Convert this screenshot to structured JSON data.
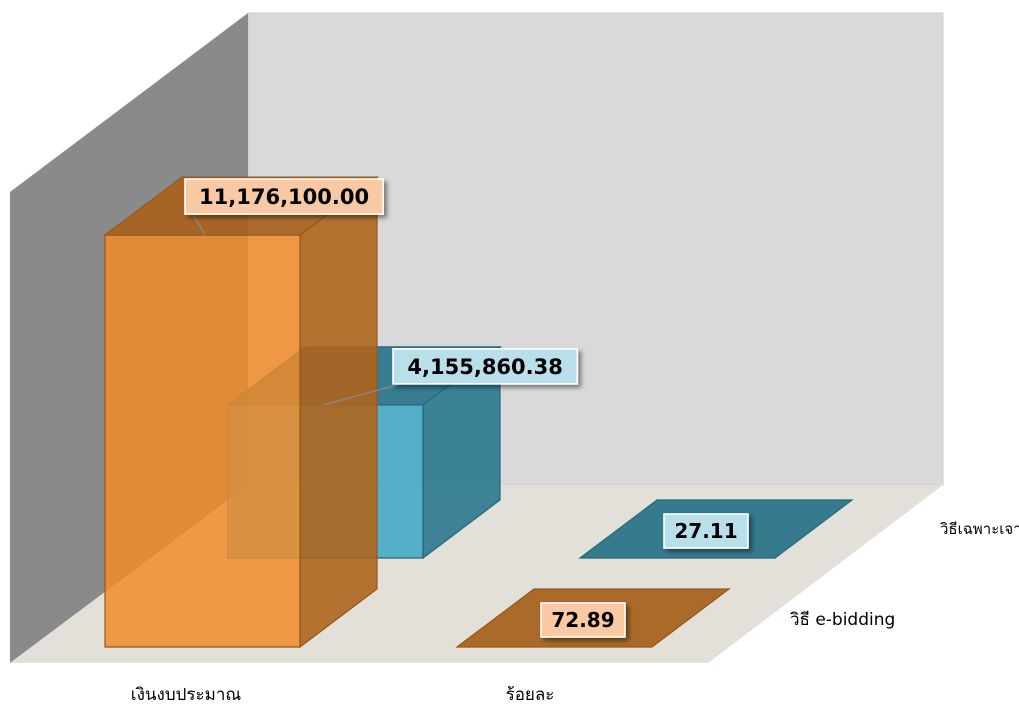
{
  "chart_data": {
    "type": "bar",
    "style": "3d-column",
    "categories": [
      "เงินงบประมาณ",
      "ร้อยละ"
    ],
    "series": [
      {
        "name": "วิธี e-bidding",
        "color": "#f28c28",
        "values": [
          11176100.0,
          72.89
        ],
        "labels": [
          "11,176,100.00",
          "72.89"
        ]
      },
      {
        "name": "วิธีเฉพาะเจาะจง",
        "color": "#3aa6c6",
        "values": [
          4155860.38,
          27.11
        ],
        "labels": [
          "4,155,860.38",
          "27.11"
        ]
      }
    ],
    "legend": "none",
    "gridlines": false,
    "ylim": [
      0,
      14000000
    ]
  }
}
